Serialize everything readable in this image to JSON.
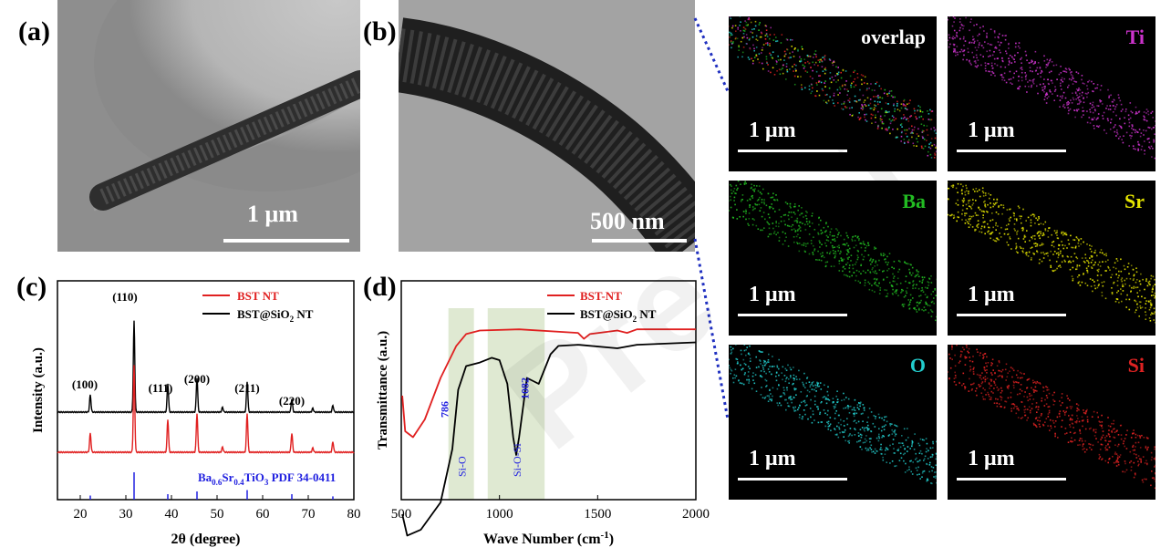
{
  "panels": {
    "a": {
      "label": "(a)",
      "scalebar": "1 μm"
    },
    "b": {
      "label": "(b)",
      "scalebar": "500 nm"
    },
    "c": {
      "label": "(c)"
    },
    "d": {
      "label": "(d)"
    }
  },
  "eds_maps": [
    {
      "element": "overlap",
      "scalebar": "1 μm",
      "color": "#ffffff"
    },
    {
      "element": "Ti",
      "scalebar": "1 μm",
      "color": "#cc33cc"
    },
    {
      "element": "Ba",
      "scalebar": "1 μm",
      "color": "#22bb22"
    },
    {
      "element": "Sr",
      "scalebar": "1 μm",
      "color": "#e6e600"
    },
    {
      "element": "O",
      "scalebar": "1 μm",
      "color": "#22cccc"
    },
    {
      "element": "Si",
      "scalebar": "1 μm",
      "color": "#dd2222"
    }
  ],
  "chart_data": [
    {
      "type": "line",
      "panel": "(c)",
      "xlabel": "2θ (degree)",
      "ylabel": "Intensity (a.u.)",
      "xlim": [
        15,
        80
      ],
      "xticks": [
        20,
        30,
        40,
        50,
        60,
        70,
        80
      ],
      "legend": [
        "BST NT",
        "BST@SiO2 NT"
      ],
      "legend_placement": "top-right",
      "series": [
        {
          "name": "BST NT",
          "color": "#e02020",
          "peaks": [
            [
              22.2,
              0.22
            ],
            [
              31.8,
              1.0
            ],
            [
              39.2,
              0.38
            ],
            [
              45.6,
              0.45
            ],
            [
              51.2,
              0.06
            ],
            [
              56.6,
              0.45
            ],
            [
              66.4,
              0.22
            ],
            [
              71.0,
              0.05
            ],
            [
              75.4,
              0.12
            ]
          ]
        },
        {
          "name": "BST@SiO2 NT",
          "color": "#000000",
          "peaks": [
            [
              22.2,
              0.18
            ],
            [
              31.8,
              0.95
            ],
            [
              39.2,
              0.3
            ],
            [
              45.6,
              0.36
            ],
            [
              51.2,
              0.05
            ],
            [
              56.6,
              0.32
            ],
            [
              66.4,
              0.14
            ],
            [
              71.0,
              0.04
            ],
            [
              75.4,
              0.07
            ]
          ]
        }
      ],
      "peak_labels": [
        {
          "x": 22.2,
          "text": "(100)"
        },
        {
          "x": 31.8,
          "text": "(110)"
        },
        {
          "x": 39.2,
          "text": "(111)"
        },
        {
          "x": 45.6,
          "text": "(200)"
        },
        {
          "x": 56.6,
          "text": "(211)"
        },
        {
          "x": 66.4,
          "text": "(220)"
        }
      ],
      "reference": {
        "label_main": "Ba",
        "sub1": "0.6",
        "label_sr": "Sr",
        "sub2": "0.4",
        "label_end": "TiO",
        "sub3": "3",
        "pdf": "PDF 34-0411",
        "lines": [
          [
            22.2,
            0.15
          ],
          [
            31.8,
            1.0
          ],
          [
            39.2,
            0.2
          ],
          [
            45.6,
            0.3
          ],
          [
            56.6,
            0.35
          ],
          [
            66.4,
            0.2
          ],
          [
            75.4,
            0.12
          ]
        ]
      }
    },
    {
      "type": "line",
      "panel": "(d)",
      "xlabel": "Wave Number (cm-1)",
      "ylabel": "Transmittance (a.u.)",
      "xlim": [
        500,
        2000
      ],
      "xticks": [
        500,
        1000,
        1500,
        2000
      ],
      "legend": [
        "BST-NT",
        "BST@SiO2 NT"
      ],
      "legend_placement": "top-right",
      "series": [
        {
          "name": "BST-NT",
          "color": "#e02020",
          "points": [
            [
              505,
              0.6
            ],
            [
              520,
              0.9
            ],
            [
              560,
              0.95
            ],
            [
              620,
              0.8
            ],
            [
              700,
              0.45
            ],
            [
              780,
              0.18
            ],
            [
              830,
              0.08
            ],
            [
              900,
              0.05
            ],
            [
              1100,
              0.04
            ],
            [
              1400,
              0.07
            ],
            [
              1430,
              0.12
            ],
            [
              1460,
              0.08
            ],
            [
              1600,
              0.05
            ],
            [
              1650,
              0.07
            ],
            [
              1700,
              0.04
            ],
            [
              2000,
              0.04
            ]
          ]
        },
        {
          "name": "BST@SiO2 NT",
          "color": "#000000",
          "points": [
            [
              505,
              1.6
            ],
            [
              530,
              1.78
            ],
            [
              600,
              1.73
            ],
            [
              700,
              1.5
            ],
            [
              760,
              1.05
            ],
            [
              790,
              0.55
            ],
            [
              830,
              0.35
            ],
            [
              900,
              0.32
            ],
            [
              960,
              0.28
            ],
            [
              1000,
              0.3
            ],
            [
              1040,
              0.5
            ],
            [
              1070,
              0.95
            ],
            [
              1085,
              1.1
            ],
            [
              1100,
              0.95
            ],
            [
              1140,
              0.45
            ],
            [
              1200,
              0.5
            ],
            [
              1260,
              0.25
            ],
            [
              1300,
              0.18
            ],
            [
              1400,
              0.17
            ],
            [
              1600,
              0.2
            ],
            [
              1700,
              0.17
            ],
            [
              2000,
              0.15
            ]
          ]
        }
      ],
      "bands": [
        {
          "from": 740,
          "to": 870,
          "label": "Si-O",
          "mark": "786"
        },
        {
          "from": 940,
          "to": 1230,
          "label": "Si-O-Si",
          "mark": "1082"
        }
      ]
    }
  ],
  "watermark": "Pre     f"
}
